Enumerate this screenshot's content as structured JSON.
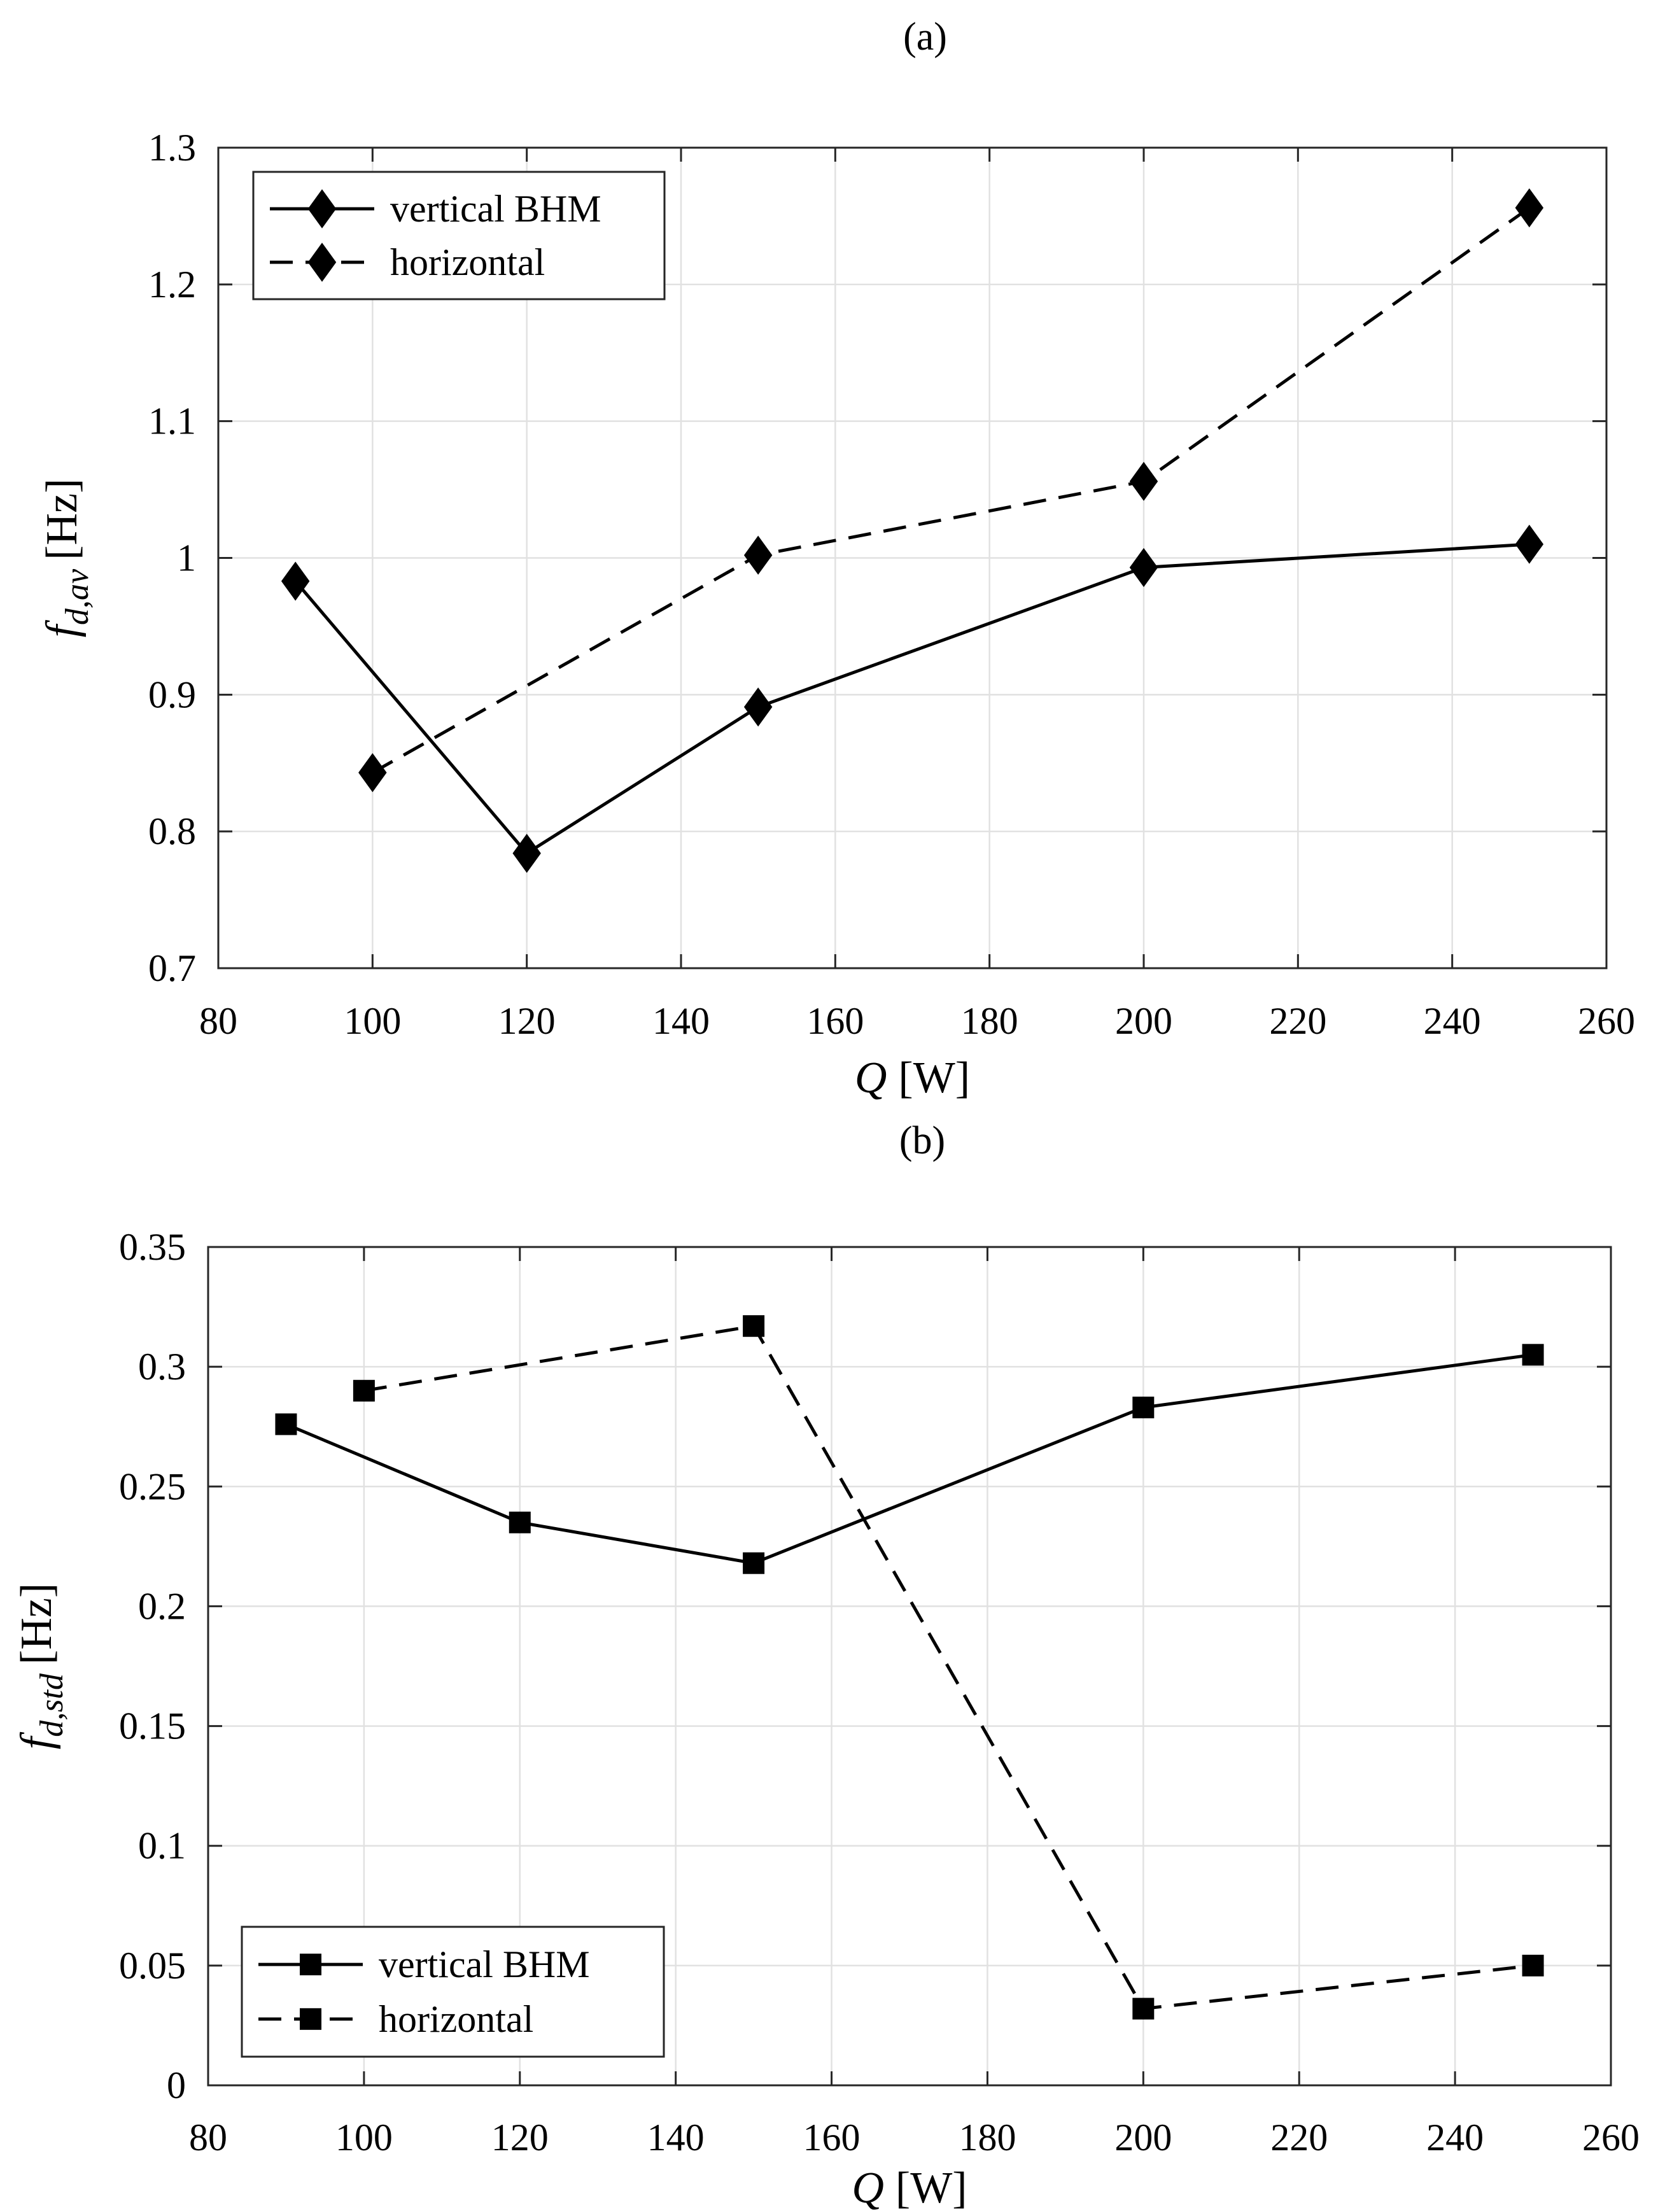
{
  "chart_data": [
    {
      "type": "line",
      "panel_label": "(a)",
      "xlabel": {
        "symbol": "Q",
        "unit": "[W]"
      },
      "ylabel": {
        "symbol": "f",
        "subscript": "d,av",
        "unit": "[Hz]"
      },
      "xlim": [
        80,
        260
      ],
      "ylim": [
        0.7,
        1.3
      ],
      "xticks": [
        80,
        100,
        120,
        140,
        160,
        180,
        200,
        220,
        240,
        260
      ],
      "yticks": [
        0.7,
        0.8,
        0.9,
        1.0,
        1.1,
        1.2,
        1.3
      ],
      "ytick_labels": [
        "0.7",
        "0.8",
        "0.9",
        "1",
        "1.1",
        "1.2",
        "1.3"
      ],
      "grid": true,
      "legend_position": "top-left",
      "marker": "diamond",
      "series": [
        {
          "name": "vertical BHM",
          "line": "solid",
          "x": [
            90,
            120,
            150,
            200,
            250
          ],
          "y": [
            0.983,
            0.784,
            0.891,
            0.993,
            1.01
          ]
        },
        {
          "name": "horizontal",
          "line": "dashed",
          "x": [
            100,
            150,
            200,
            250
          ],
          "y": [
            0.843,
            1.002,
            1.056,
            1.256
          ]
        }
      ]
    },
    {
      "type": "line",
      "panel_label": "(b)",
      "xlabel": {
        "symbol": "Q",
        "unit": "[W]"
      },
      "ylabel": {
        "symbol": "f",
        "subscript": "d,std",
        "unit": "[Hz]"
      },
      "xlim": [
        80,
        260
      ],
      "ylim": [
        0,
        0.35
      ],
      "xticks": [
        80,
        100,
        120,
        140,
        160,
        180,
        200,
        220,
        240,
        260
      ],
      "yticks": [
        0,
        0.05,
        0.1,
        0.15,
        0.2,
        0.25,
        0.3,
        0.35
      ],
      "ytick_labels": [
        "0",
        "0.05",
        "0.1",
        "0.15",
        "0.2",
        "0.25",
        "0.3",
        "0.35"
      ],
      "grid": true,
      "legend_position": "bottom-left",
      "marker": "square",
      "series": [
        {
          "name": "vertical BHM",
          "line": "solid",
          "x": [
            90,
            120,
            150,
            200,
            250
          ],
          "y": [
            0.276,
            0.235,
            0.218,
            0.283,
            0.305
          ]
        },
        {
          "name": "horizontal",
          "line": "dashed",
          "x": [
            100,
            150,
            200,
            250
          ],
          "y": [
            0.29,
            0.317,
            0.032,
            0.05
          ]
        }
      ]
    }
  ]
}
